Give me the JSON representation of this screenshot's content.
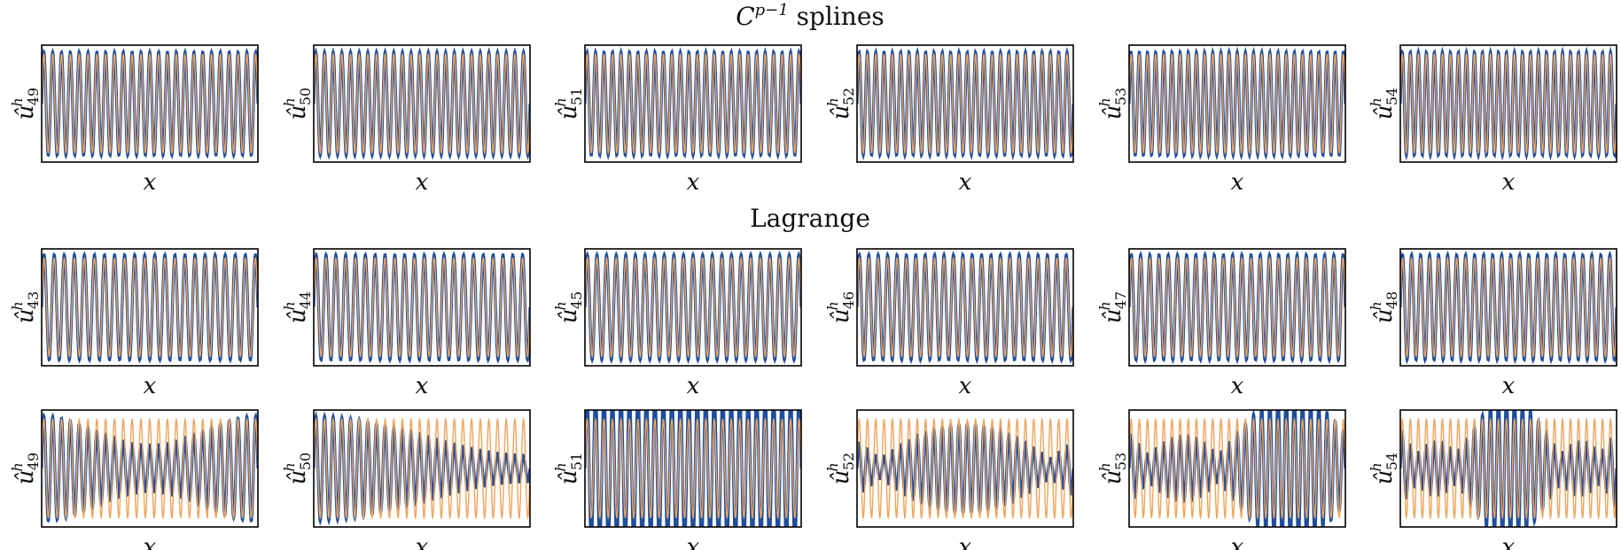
{
  "colors": {
    "numerical": "#1f4e9e",
    "exact": "#f0a45a"
  },
  "titles": {
    "spline_base": "C",
    "spline_sup": "p−1",
    "spline_rest": " splines",
    "lagrange": "Lagrange"
  },
  "chart_data": [
    {
      "type": "line",
      "group": "C^{p-1} splines",
      "xlabel": "x",
      "ylabel": "û^h_49",
      "ylabel_base": "û",
      "ylabel_sup": "h",
      "ylabel_sub": "49",
      "series": [
        {
          "name": "",
          "k": 49,
          "mode": "spline"
        },
        {
          "name": "",
          "k": 49,
          "mode": "exact"
        }
      ]
    },
    {
      "type": "line",
      "group": "C^{p-1} splines",
      "xlabel": "x",
      "ylabel": "û^h_50",
      "ylabel_base": "û",
      "ylabel_sup": "h",
      "ylabel_sub": "50",
      "series": [
        {
          "name": "",
          "k": 50,
          "mode": "spline"
        },
        {
          "name": "",
          "k": 50,
          "mode": "exact"
        }
      ]
    },
    {
      "type": "line",
      "group": "C^{p-1} splines",
      "xlabel": "x",
      "ylabel": "û^h_51",
      "ylabel_base": "û",
      "ylabel_sup": "h",
      "ylabel_sub": "51",
      "series": [
        {
          "name": "",
          "k": 51,
          "mode": "spline"
        },
        {
          "name": "",
          "k": 51,
          "mode": "exact"
        }
      ]
    },
    {
      "type": "line",
      "group": "C^{p-1} splines",
      "xlabel": "x",
      "ylabel": "û^h_52",
      "ylabel_base": "û",
      "ylabel_sup": "h",
      "ylabel_sub": "52",
      "series": [
        {
          "name": "",
          "k": 52,
          "mode": "spline"
        },
        {
          "name": "",
          "k": 52,
          "mode": "exact"
        }
      ]
    },
    {
      "type": "line",
      "group": "C^{p-1} splines",
      "xlabel": "x",
      "ylabel": "û^h_53",
      "ylabel_base": "û",
      "ylabel_sup": "h",
      "ylabel_sub": "53",
      "series": [
        {
          "name": "",
          "k": 53,
          "mode": "spline"
        },
        {
          "name": "",
          "k": 53,
          "mode": "exact"
        }
      ]
    },
    {
      "type": "line",
      "group": "C^{p-1} splines",
      "xlabel": "x",
      "ylabel": "û^h_54",
      "ylabel_base": "û",
      "ylabel_sup": "h",
      "ylabel_sub": "54",
      "series": [
        {
          "name": "",
          "k": 54,
          "mode": "spline"
        },
        {
          "name": "",
          "k": 54,
          "mode": "exact"
        }
      ]
    },
    {
      "type": "line",
      "group": "Lagrange",
      "xlabel": "x",
      "ylabel": "û^h_43",
      "ylabel_base": "û",
      "ylabel_sup": "h",
      "ylabel_sub": "43",
      "series": [
        {
          "name": "",
          "k": 43,
          "mode": "lagrange",
          "beat": 0.0,
          "amp": 0.06
        },
        {
          "name": "",
          "k": 43,
          "mode": "exact"
        }
      ]
    },
    {
      "type": "line",
      "group": "Lagrange",
      "xlabel": "x",
      "ylabel": "û^h_44",
      "ylabel_base": "û",
      "ylabel_sup": "h",
      "ylabel_sub": "44",
      "series": [
        {
          "name": "",
          "k": 44,
          "mode": "lagrange",
          "beat": 0.0,
          "amp": 0.07
        },
        {
          "name": "",
          "k": 44,
          "mode": "exact"
        }
      ]
    },
    {
      "type": "line",
      "group": "Lagrange",
      "xlabel": "x",
      "ylabel": "û^h_45",
      "ylabel_base": "û",
      "ylabel_sup": "h",
      "ylabel_sub": "45",
      "series": [
        {
          "name": "",
          "k": 45,
          "mode": "lagrange",
          "beat": 0.0,
          "amp": 0.1
        },
        {
          "name": "",
          "k": 45,
          "mode": "exact"
        }
      ]
    },
    {
      "type": "line",
      "group": "Lagrange",
      "xlabel": "x",
      "ylabel": "û^h_46",
      "ylabel_base": "û",
      "ylabel_sup": "h",
      "ylabel_sub": "46",
      "series": [
        {
          "name": "",
          "k": 46,
          "mode": "lagrange",
          "beat": 0.0,
          "amp": 0.12
        },
        {
          "name": "",
          "k": 46,
          "mode": "exact"
        }
      ]
    },
    {
      "type": "line",
      "group": "Lagrange",
      "xlabel": "x",
      "ylabel": "û^h_47",
      "ylabel_base": "û",
      "ylabel_sup": "h",
      "ylabel_sub": "47",
      "series": [
        {
          "name": "",
          "k": 47,
          "mode": "lagrange",
          "beat": 0.0,
          "amp": 0.15
        },
        {
          "name": "",
          "k": 47,
          "mode": "exact"
        }
      ]
    },
    {
      "type": "line",
      "group": "Lagrange",
      "xlabel": "x",
      "ylabel": "û^h_48",
      "ylabel_base": "û",
      "ylabel_sup": "h",
      "ylabel_sub": "48",
      "series": [
        {
          "name": "",
          "k": 48,
          "mode": "lagrange",
          "beat": 0.0,
          "amp": 0.18
        },
        {
          "name": "",
          "k": 48,
          "mode": "exact"
        }
      ]
    },
    {
      "type": "line",
      "group": "Lagrange",
      "xlabel": "x",
      "ylabel": "û^h_49",
      "ylabel_base": "û",
      "ylabel_sup": "h",
      "ylabel_sub": "49",
      "series": [
        {
          "name": "",
          "k": 49,
          "mode": "lagrange",
          "beat": 2.0,
          "amp": 0.4
        },
        {
          "name": "",
          "k": 49,
          "mode": "exact"
        }
      ]
    },
    {
      "type": "line",
      "group": "Lagrange",
      "xlabel": "x",
      "ylabel": "û^h_50",
      "ylabel_base": "û",
      "ylabel_sup": "h",
      "ylabel_sub": "50",
      "series": [
        {
          "name": "",
          "k": 50,
          "mode": "lagrange",
          "beat": 1.0,
          "amp": 0.5
        },
        {
          "name": "",
          "k": 50,
          "mode": "exact"
        }
      ]
    },
    {
      "type": "line",
      "group": "Lagrange",
      "xlabel": "x",
      "ylabel": "û^h_51",
      "ylabel_base": "û",
      "ylabel_sup": "h",
      "ylabel_sub": "51",
      "series": [
        {
          "name": "",
          "k": 51,
          "mode": "lagrange",
          "beat": 0.0,
          "amp": 0.0,
          "scale": 1.45
        },
        {
          "name": "",
          "k": 51,
          "mode": "exact"
        }
      ]
    },
    {
      "type": "line",
      "group": "Lagrange",
      "xlabel": "x",
      "ylabel": "û^h_52",
      "ylabel_base": "û",
      "ylabel_sup": "h",
      "ylabel_sub": "52",
      "series": [
        {
          "name": "",
          "k": 52,
          "mode": "lagrange",
          "beat": 1.0,
          "amp": 0.75,
          "scale": 1.5,
          "phase": 1.5708
        },
        {
          "name": "",
          "k": 52,
          "mode": "exact"
        }
      ]
    },
    {
      "type": "line",
      "group": "Lagrange",
      "xlabel": "x",
      "ylabel": "û^h_53",
      "ylabel_base": "û",
      "ylabel_sup": "h",
      "ylabel_sub": "53",
      "series": [
        {
          "name": "",
          "k": 53,
          "mode": "lagrange",
          "beat": 2.0,
          "amp": 0.65,
          "scale": 1.45,
          "phase": 1.5708
        },
        {
          "name": "",
          "k": 53,
          "mode": "exact"
        }
      ]
    },
    {
      "type": "line",
      "group": "Lagrange",
      "xlabel": "x",
      "ylabel": "û^h_54",
      "ylabel_base": "û",
      "ylabel_sup": "h",
      "ylabel_sub": "54",
      "series": [
        {
          "name": "",
          "k": 54,
          "mode": "lagrange",
          "beat": 3.0,
          "amp": 0.6,
          "scale": 1.4,
          "phase": 1.5708
        },
        {
          "name": "",
          "k": 54,
          "mode": "exact"
        }
      ]
    }
  ]
}
